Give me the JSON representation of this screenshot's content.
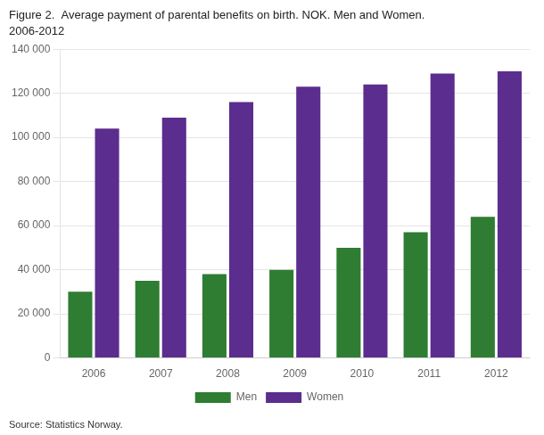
{
  "chart_data": {
    "type": "bar",
    "title": "Figure 2.  Average payment of parental benefits on birth. NOK. Men and Women.",
    "subtitle": "2006-2012",
    "annotations": [
      "Source: Statistics Norway."
    ],
    "categories": [
      "2006",
      "2007",
      "2008",
      "2009",
      "2010",
      "2011",
      "2012"
    ],
    "series": [
      {
        "name": "Men",
        "color": "#2e7d32",
        "values": [
          30000,
          35000,
          38000,
          40000,
          50000,
          57000,
          64000
        ]
      },
      {
        "name": "Women",
        "color": "#5b2d8e",
        "values": [
          104000,
          109000,
          116000,
          123000,
          124000,
          129000,
          130000
        ]
      }
    ],
    "ylim": [
      0,
      140000
    ],
    "yticks": [
      0,
      {
        "value": 20000,
        "label": "20 000"
      },
      {
        "value": 40000,
        "label": "40 000"
      },
      {
        "value": 60000,
        "label": "60 000"
      },
      {
        "value": 80000,
        "label": "80 000"
      },
      {
        "value": 100000,
        "label": "100 000"
      },
      {
        "value": 120000,
        "label": "120 000"
      },
      {
        "value": 140000,
        "label": "140 000"
      }
    ],
    "grid": true,
    "legend": "bottom"
  }
}
